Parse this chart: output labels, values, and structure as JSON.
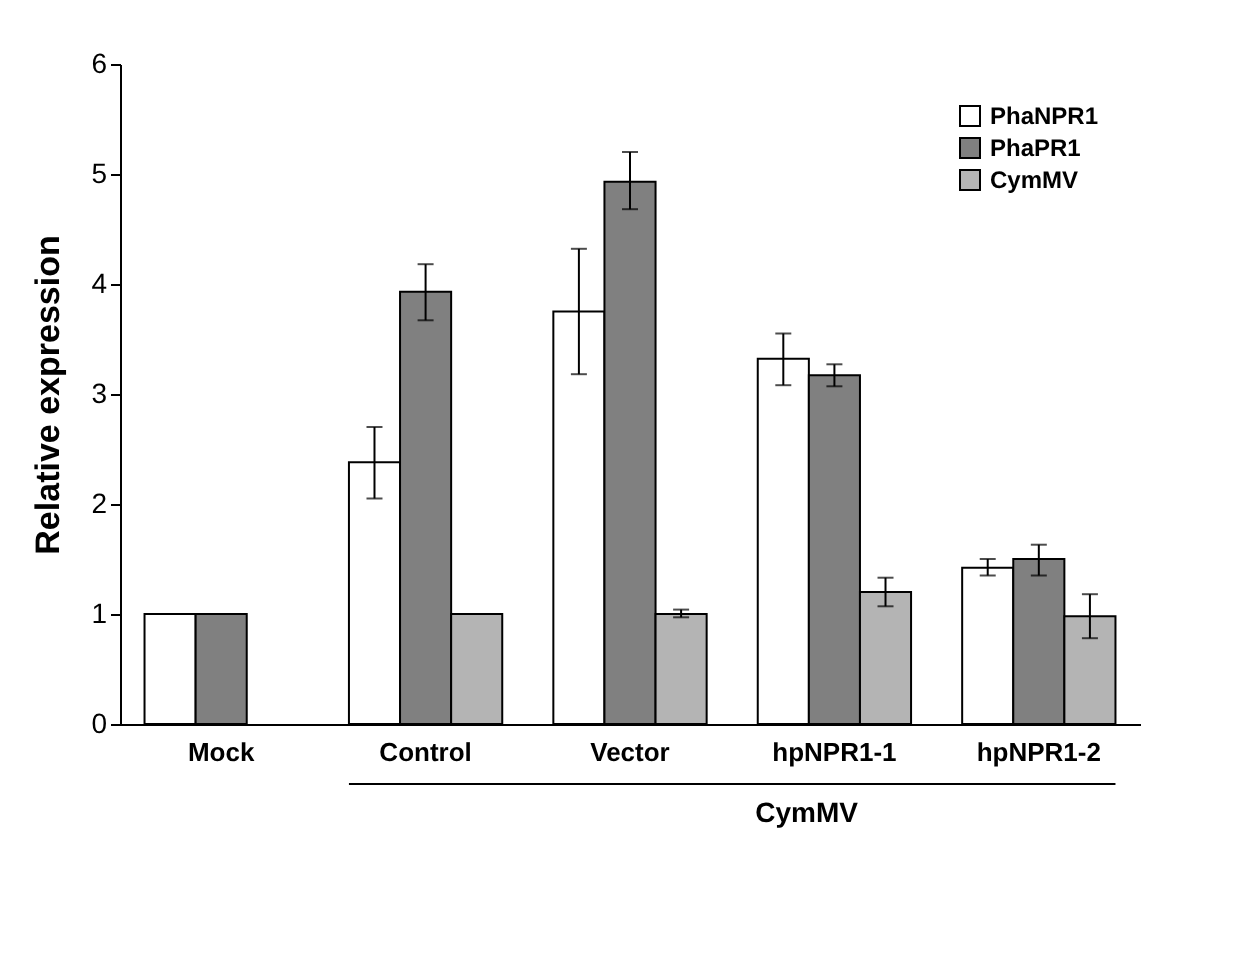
{
  "chart_data": {
    "type": "bar",
    "ylabel": "Relative expression",
    "categories": [
      "Mock",
      "Control",
      "Vector",
      "hpNPR1-1",
      "hpNPR1-2"
    ],
    "series": [
      {
        "name": "PhaNPR1",
        "color": "#ffffff",
        "values": [
          1,
          2.38,
          3.75,
          3.32,
          1.42
        ],
        "errors": [
          null,
          [
            2.05,
            2.7
          ],
          [
            3.18,
            4.32
          ],
          [
            3.08,
            3.55
          ],
          [
            1.35,
            1.5
          ]
        ]
      },
      {
        "name": "PhaPR1",
        "color": "#808080",
        "values": [
          1,
          3.93,
          4.93,
          3.17,
          1.5
        ],
        "errors": [
          null,
          [
            3.67,
            4.18
          ],
          [
            4.68,
            5.2
          ],
          [
            3.07,
            3.27
          ],
          [
            1.35,
            1.63
          ]
        ]
      },
      {
        "name": "CymMV",
        "color": "#b4b4b4",
        "values": [
          null,
          1.0,
          1.0,
          1.2,
          0.98
        ],
        "errors": [
          null,
          null,
          [
            0.97,
            1.04
          ],
          [
            1.07,
            1.33
          ],
          [
            0.78,
            1.18
          ]
        ]
      }
    ],
    "ylim": [
      0,
      6
    ],
    "yticks": [
      0,
      1,
      2,
      3,
      4,
      5,
      6
    ],
    "grid": false,
    "legend": "top right",
    "annotations": [
      "CymMV"
    ]
  }
}
